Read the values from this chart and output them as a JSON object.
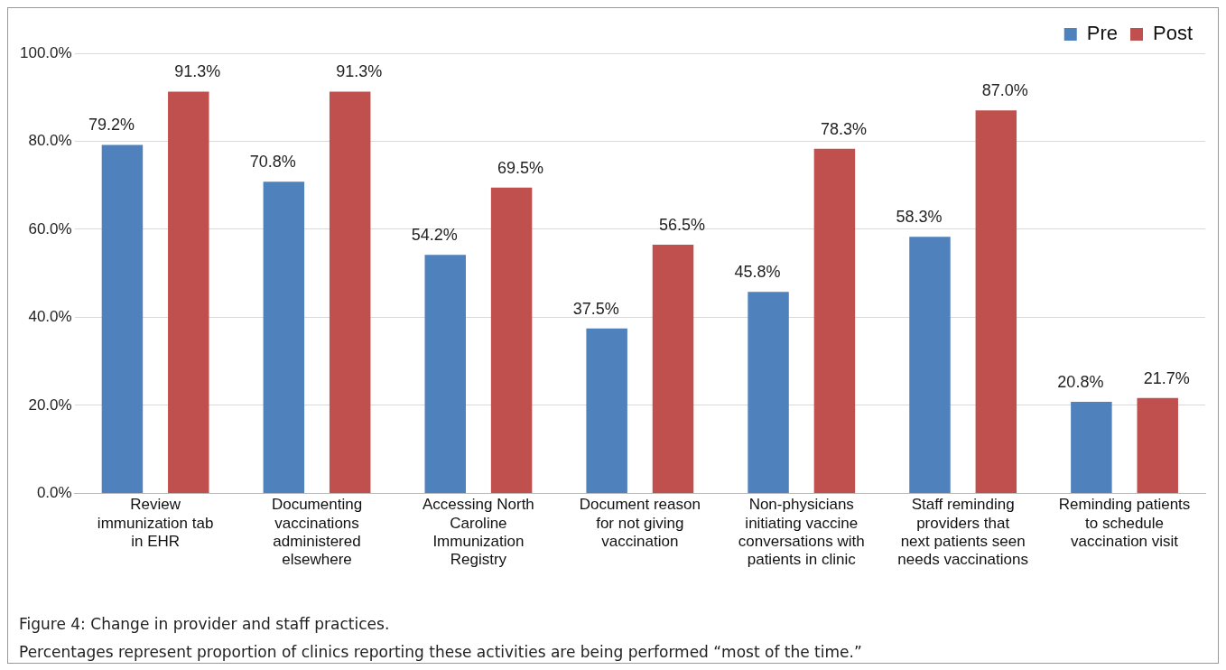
{
  "chart_data": {
    "type": "bar",
    "title": "Figure 4: Change in provider and staff practices.",
    "annotations": [
      "Percentages represent proportion of clinics reporting these activities are being performed “most of the time.”"
    ],
    "categories": [
      "Review immunization tab in EHR",
      "Documenting vaccinations administered elsewhere",
      "Accessing North Caroline Immunization Registry",
      "Document reason for not giving vaccination",
      "Non-physicians initiating vaccine conversations with patients in clinic",
      "Staff reminding providers that next patients seen needs vaccinations",
      "Reminding patients to schedule vaccination visit"
    ],
    "series": [
      {
        "name": "Pre",
        "color": "#4f81bd",
        "values": [
          79.2,
          70.8,
          54.2,
          37.5,
          45.8,
          58.3,
          20.8
        ],
        "value_labels": [
          "79.2%",
          "70.8%",
          "54.2%",
          "37.5%",
          "45.8%",
          "58.3%",
          "20.8%"
        ]
      },
      {
        "name": "Post",
        "color": "#c0504d",
        "values": [
          91.3,
          91.3,
          69.5,
          56.5,
          78.3,
          87.0,
          21.7
        ],
        "value_labels": [
          "91.3%",
          "91.3%",
          "69.5%",
          "56.5%",
          "78.3%",
          "87.0%",
          "21.7%"
        ]
      }
    ],
    "ylim": [
      0,
      100
    ],
    "yticks": [
      {
        "value": 0,
        "label": "0.0%"
      },
      {
        "value": 20,
        "label": "20.0%"
      },
      {
        "value": 40,
        "label": "40.0%"
      },
      {
        "value": 60,
        "label": "60.0%"
      },
      {
        "value": 80,
        "label": "80.0%"
      },
      {
        "value": 100,
        "label": "100.0%"
      }
    ],
    "grid": "y",
    "legend": "top right"
  }
}
